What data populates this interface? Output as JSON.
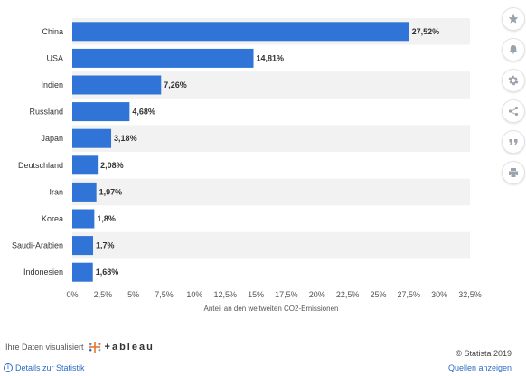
{
  "chart_data": {
    "type": "bar",
    "orientation": "horizontal",
    "categories": [
      "China",
      "USA",
      "Indien",
      "Russland",
      "Japan",
      "Deutschland",
      "Iran",
      "Korea",
      "Saudi-Arabien",
      "Indonesien"
    ],
    "values": [
      27.52,
      14.81,
      7.26,
      4.68,
      3.18,
      2.08,
      1.97,
      1.8,
      1.7,
      1.68
    ],
    "value_labels": [
      "27,52%",
      "14,81%",
      "7,26%",
      "4,68%",
      "3,18%",
      "2,08%",
      "1,97%",
      "1,8%",
      "1,7%",
      "1,68%"
    ],
    "xlabel": "Anteil an den weltweiten CO2-Emissionen",
    "xlim": [
      0,
      32.5
    ],
    "xticks": [
      0,
      2.5,
      5,
      7.5,
      10,
      12.5,
      15,
      17.5,
      20,
      22.5,
      25,
      27.5,
      30,
      32.5
    ],
    "xtick_labels": [
      "0%",
      "2,5%",
      "5%",
      "7,5%",
      "10%",
      "12,5%",
      "15%",
      "17,5%",
      "20%",
      "22,5%",
      "25%",
      "27,5%",
      "30%",
      "32,5%"
    ],
    "bar_color": "#2f74d6",
    "band_color": "#f2f2f2",
    "grid": false
  },
  "toolbar": {
    "icons": [
      "star-icon",
      "bell-icon",
      "gear-icon",
      "share-icon",
      "quote-icon",
      "print-icon"
    ]
  },
  "footer": {
    "viz_label": "Ihre Daten visualisiert",
    "tableau_label": "+ableau",
    "copyright": "© Statista 2019",
    "details_link": "Details zur Statistik",
    "sources_link": "Quellen anzeigen"
  }
}
